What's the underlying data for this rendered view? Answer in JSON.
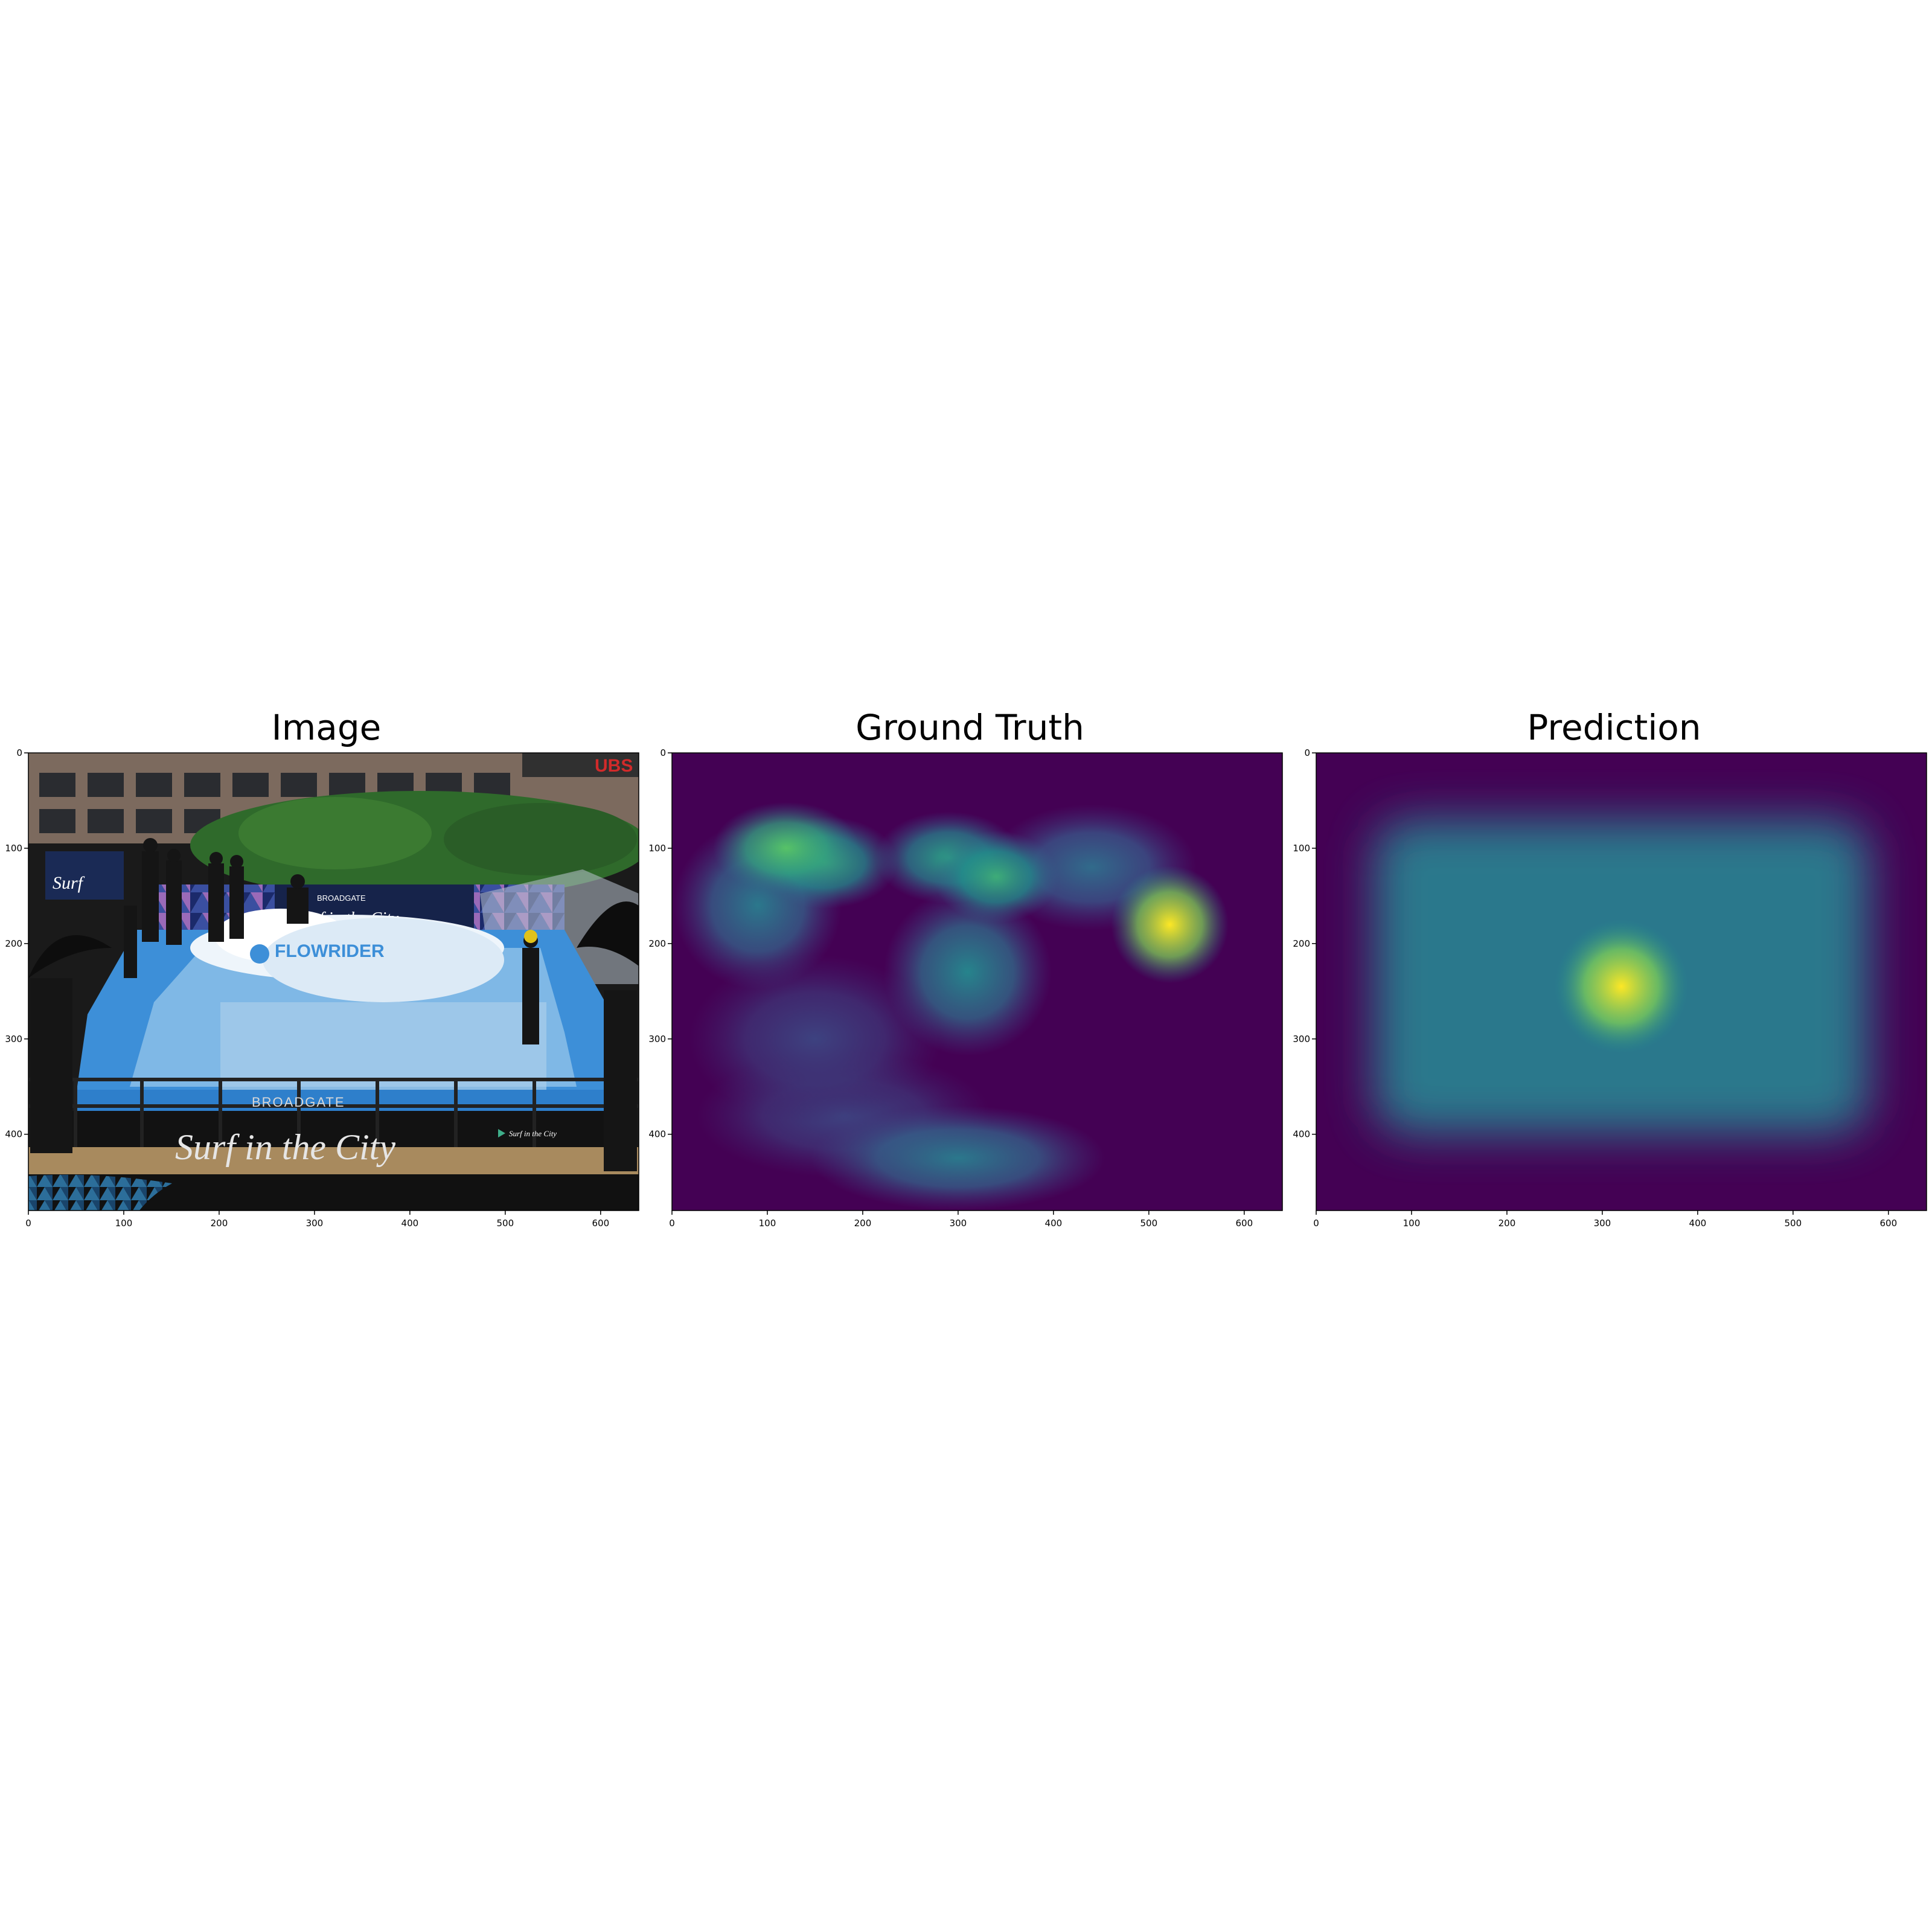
{
  "panels": [
    {
      "title": "Image",
      "kind": "photo"
    },
    {
      "title": "Ground Truth",
      "kind": "heatmap-gt"
    },
    {
      "title": "Prediction",
      "kind": "heatmap-pred"
    }
  ],
  "photo": {
    "signs": {
      "top_brand": "BROADGATE",
      "top_slogan": "Surf in the City",
      "corner_logo": "UBS",
      "pool_logo": "FLOWRIDER",
      "banner_brand": "BROADGATE",
      "banner_slogan": "Surf in the City",
      "small_slogan": "Surf in the City",
      "left_sign": "Surf"
    },
    "colors": {
      "pool": "#3d8fd8",
      "water": "#e8f2fa",
      "deck": "#a88a5e",
      "hedge": "#2f6a2b",
      "banner": "#111111"
    }
  },
  "chart_data": [
    {
      "type": "heatmap",
      "title": "Image",
      "xlabel": "",
      "ylabel": "",
      "xlim": [
        0,
        640
      ],
      "ylim": [
        480,
        0
      ],
      "xticks": [
        0,
        100,
        200,
        300,
        400,
        500,
        600
      ],
      "yticks": [
        0,
        100,
        200,
        300,
        400
      ],
      "content": "photograph"
    },
    {
      "type": "heatmap",
      "title": "Ground Truth",
      "xlabel": "",
      "ylabel": "",
      "xlim": [
        0,
        640
      ],
      "ylim": [
        480,
        0
      ],
      "xticks": [
        0,
        100,
        200,
        300,
        400,
        500,
        600
      ],
      "yticks": [
        0,
        100,
        200,
        300,
        400
      ],
      "colormap": "viridis",
      "hotspots": [
        {
          "x": 522,
          "y": 180,
          "rx": 28,
          "ry": 28,
          "intensity": 1.0
        },
        {
          "x": 120,
          "y": 100,
          "rx": 35,
          "ry": 22,
          "intensity": 0.72
        },
        {
          "x": 160,
          "y": 115,
          "rx": 35,
          "ry": 22,
          "intensity": 0.6
        },
        {
          "x": 290,
          "y": 110,
          "rx": 35,
          "ry": 22,
          "intensity": 0.55
        },
        {
          "x": 340,
          "y": 130,
          "rx": 30,
          "ry": 22,
          "intensity": 0.62
        },
        {
          "x": 310,
          "y": 230,
          "rx": 40,
          "ry": 40,
          "intensity": 0.45
        },
        {
          "x": 90,
          "y": 160,
          "rx": 40,
          "ry": 40,
          "intensity": 0.4
        },
        {
          "x": 440,
          "y": 120,
          "rx": 50,
          "ry": 30,
          "intensity": 0.35
        },
        {
          "x": 300,
          "y": 425,
          "rx": 70,
          "ry": 25,
          "intensity": 0.4
        },
        {
          "x": 180,
          "y": 380,
          "rx": 70,
          "ry": 30,
          "intensity": 0.2
        },
        {
          "x": 150,
          "y": 300,
          "rx": 60,
          "ry": 40,
          "intensity": 0.2
        }
      ]
    },
    {
      "type": "heatmap",
      "title": "Prediction",
      "xlabel": "",
      "ylabel": "",
      "xlim": [
        0,
        640
      ],
      "ylim": [
        480,
        0
      ],
      "xticks": [
        0,
        100,
        200,
        300,
        400,
        500,
        600
      ],
      "yticks": [
        0,
        100,
        200,
        300,
        400
      ],
      "colormap": "viridis",
      "hotspots": [
        {
          "x": 320,
          "y": 245,
          "rx": 32,
          "ry": 32,
          "intensity": 1.0
        }
      ],
      "background_region": {
        "x0": 60,
        "x1": 580,
        "y0": 70,
        "y1": 400,
        "intensity": 0.4
      }
    }
  ]
}
